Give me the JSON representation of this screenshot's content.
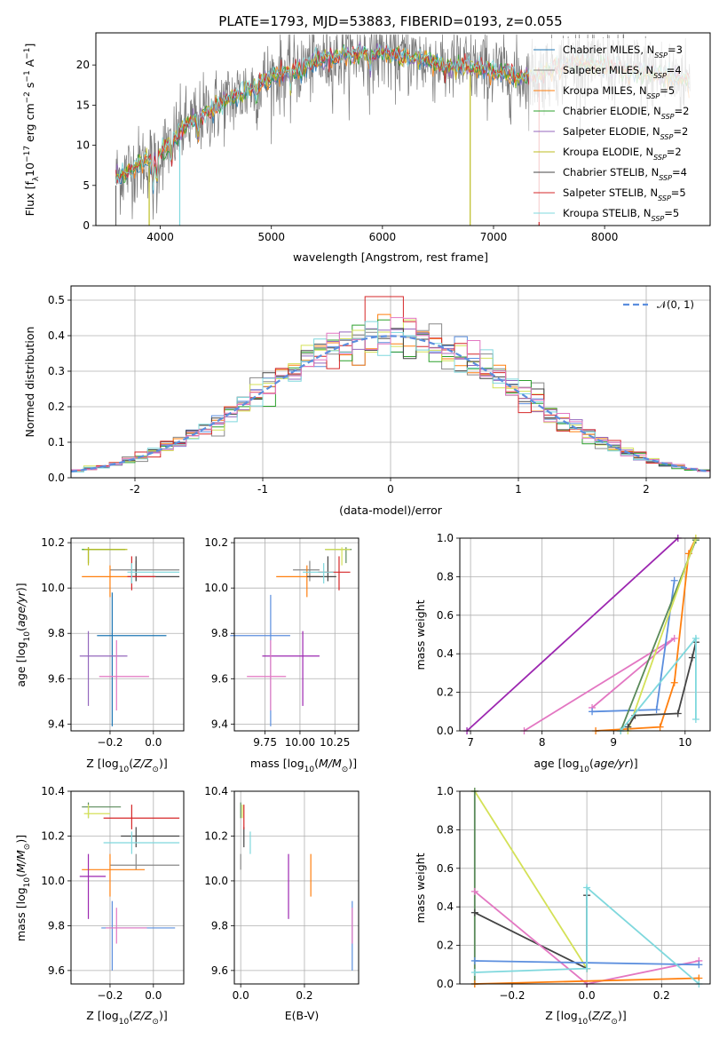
{
  "title": "PLATE=1793, MJD=53883, FIBERID=0193, z=0.055",
  "colors": {
    "Chabrier MILES": "#1f77b4",
    "Salpeter MILES": "#888888",
    "Kroupa MILES": "#ff7f0e",
    "Chabrier ELODIE": "#2ca02c",
    "Salpeter ELODIE": "#9467bd",
    "Kroupa ELODIE": "#bcbd22",
    "Chabrier STELIB": "#444444",
    "Salpeter STELIB": "#d62728",
    "Kroupa STELIB": "#7fd8dd",
    "Normal": "#5b8ede"
  },
  "legend_main": [
    {
      "pre": "Chabrier MILES, N",
      "sub": "SSP",
      "post": "=3",
      "series": "Chabrier MILES"
    },
    {
      "pre": "Salpeter MILES, N",
      "sub": "SSP",
      "post": "=4",
      "series": "Salpeter MILES"
    },
    {
      "pre": "Kroupa MILES, N",
      "sub": "SSP",
      "post": "=5",
      "series": "Kroupa MILES"
    },
    {
      "pre": "Chabrier ELODIE, N",
      "sub": "SSP",
      "post": "=2",
      "series": "Chabrier ELODIE"
    },
    {
      "pre": "Salpeter ELODIE, N",
      "sub": "SSP",
      "post": "=2",
      "series": "Salpeter ELODIE"
    },
    {
      "pre": "Kroupa ELODIE, N",
      "sub": "SSP",
      "post": "=2",
      "series": "Kroupa ELODIE"
    },
    {
      "pre": "Chabrier STELIB, N",
      "sub": "SSP",
      "post": "=4",
      "series": "Chabrier STELIB"
    },
    {
      "pre": "Salpeter STELIB, N",
      "sub": "SSP",
      "post": "=5",
      "series": "Salpeter STELIB"
    },
    {
      "pre": "Kroupa STELIB, N",
      "sub": "SSP",
      "post": "=5",
      "series": "Kroupa STELIB"
    }
  ],
  "legend_hist": "𝒩(0, 1)",
  "chart_data": [
    {
      "id": "spectrum",
      "type": "line",
      "xlabel": "wavelength [Angstrom, rest frame]",
      "ylabel_pre": "Flux [f",
      "ylabel_sub": "λ",
      "ylabel_mid": "10",
      "ylabel_sup1": "−17",
      "ylabel_post1": " erg cm",
      "ylabel_sup2": "−2",
      "ylabel_post2": " s",
      "ylabel_sup3": "−1",
      "ylabel_post3": " A",
      "ylabel_sup4": "−1",
      "ylabel_end": "]",
      "xlim": [
        3420,
        8950
      ],
      "ylim": [
        0,
        24
      ],
      "xticks": [
        4000,
        5000,
        6000,
        7000,
        8000
      ],
      "yticks": [
        0,
        5,
        10,
        15,
        20
      ],
      "continuum": [
        [
          3600,
          6
        ],
        [
          3800,
          7.5
        ],
        [
          4000,
          9
        ],
        [
          4200,
          12
        ],
        [
          4400,
          14
        ],
        [
          4600,
          15.5
        ],
        [
          4800,
          17
        ],
        [
          5000,
          18.5
        ],
        [
          5200,
          19.5
        ],
        [
          5400,
          20.5
        ],
        [
          5600,
          21
        ],
        [
          5800,
          21.5
        ],
        [
          6000,
          21.5
        ],
        [
          6200,
          21
        ],
        [
          6400,
          20.5
        ],
        [
          6600,
          20
        ],
        [
          6800,
          19.7
        ],
        [
          7000,
          19.3
        ],
        [
          7200,
          18.5
        ],
        [
          7400,
          18.7
        ],
        [
          7600,
          20
        ],
        [
          7800,
          20.3
        ],
        [
          8000,
          19.8
        ],
        [
          8200,
          19.3
        ],
        [
          8400,
          19
        ],
        [
          8600,
          18.5
        ],
        [
          8770,
          18.1
        ]
      ]
    },
    {
      "id": "residuals",
      "type": "histogram",
      "xlabel": "(data-model)/error",
      "ylabel": "Normed distribution",
      "xlim": [
        -2.5,
        2.5
      ],
      "ylim": [
        0,
        0.54
      ],
      "xticks": [
        -2,
        -1,
        0,
        1,
        2
      ],
      "yticks": [
        0.0,
        0.1,
        0.2,
        0.3,
        0.4,
        0.5
      ],
      "bin_width": 0.1,
      "reference": "normal(0,1)"
    },
    {
      "id": "age_vs_Z",
      "type": "scatter",
      "xlabel_pre": "Z [log",
      "xlabel_sub": "10",
      "xlabel_post": "(Z/Z",
      "xlabel_sub2": "⊙",
      "xlabel_end": ")]",
      "ylabel_pre": "age  [log",
      "ylabel_sub": "10",
      "ylabel_post": "(age/yr)]",
      "xlim": [
        -0.38,
        0.14
      ],
      "ylim": [
        9.37,
        10.22
      ],
      "xticks": [
        -0.2,
        0.0
      ],
      "xticklabels": [
        "−0.2",
        "0.0"
      ],
      "yticks": [
        9.4,
        9.6,
        9.8,
        10.0,
        10.2
      ],
      "points": [
        {
          "s": "Chabrier MILES",
          "x": -0.19,
          "y": 9.79,
          "xl": -0.26,
          "xh": 0.06,
          "yl": 9.39,
          "yh": 9.98
        },
        {
          "s": "Salpeter MILES",
          "x": -0.08,
          "y": 10.08,
          "xl": -0.2,
          "xh": 0.12,
          "yl": 10.03,
          "yh": 10.12
        },
        {
          "s": "Kroupa MILES",
          "x": -0.2,
          "y": 10.05,
          "xl": -0.33,
          "xh": -0.09,
          "yl": 9.96,
          "yh": 10.1
        },
        {
          "s": "Chabrier ELODIE",
          "x": -0.3,
          "y": 10.17,
          "xl": -0.33,
          "xh": -0.13,
          "yl": 10.11,
          "yh": 10.18
        },
        {
          "s": "Salpeter ELODIE",
          "x": -0.3,
          "y": 9.7,
          "xl": -0.34,
          "xh": -0.12,
          "yl": 9.48,
          "yh": 9.81
        },
        {
          "s": "Kroupa ELODIE",
          "x": -0.3,
          "y": 10.17,
          "xl": -0.32,
          "xh": -0.12,
          "yl": 10.1,
          "yh": 10.18
        },
        {
          "s": "Chabrier STELIB",
          "x": -0.08,
          "y": 10.05,
          "xl": -0.1,
          "xh": 0.12,
          "yl": 10.03,
          "yh": 10.14
        },
        {
          "s": "Salpeter STELIB",
          "x": -0.1,
          "y": 10.05,
          "xl": -0.12,
          "xh": 0.01,
          "yl": 9.99,
          "yh": 10.14
        },
        {
          "s": "Kroupa STELIB",
          "x": -0.1,
          "y": 10.07,
          "xl": -0.12,
          "xh": 0.12,
          "yl": 10.02,
          "yh": 10.11
        },
        {
          "s": "Salpeter MILES pink",
          "x": -0.17,
          "y": 9.61,
          "xl": -0.25,
          "xh": -0.02,
          "yl": 9.46,
          "yh": 9.77,
          "c": "#e377c2"
        }
      ]
    },
    {
      "id": "age_vs_mass",
      "type": "scatter",
      "xlabel_pre": "mass [log",
      "xlabel_sub": "10",
      "xlabel_post": "(M/M",
      "xlabel_sub2": "⊙",
      "xlabel_end": ")]",
      "xlim": [
        9.53,
        10.42
      ],
      "ylim": [
        9.37,
        10.22
      ],
      "xticks": [
        9.75,
        10.0,
        10.25
      ],
      "xticklabels": [
        "9.75",
        "10.00",
        "10.25"
      ],
      "yticks": [
        9.4,
        9.6,
        9.8,
        10.0,
        10.2
      ]
    },
    {
      "id": "mass_weight_vs_age",
      "type": "line",
      "xlabel_pre": "age  [log",
      "xlabel_sub": "10",
      "xlabel_post": "(age/yr)]",
      "ylabel": "mass weight",
      "xlim": [
        6.85,
        10.35
      ],
      "ylim": [
        0,
        1
      ],
      "xticks": [
        7,
        8,
        9,
        10
      ],
      "yticks": [
        0.0,
        0.2,
        0.4,
        0.6,
        0.8,
        1.0
      ],
      "series": [
        {
          "s": "Salpeter ELODIE",
          "c": "#9c27b0",
          "pts": [
            [
              6.95,
              0.0
            ],
            [
              9.9,
              1.0
            ]
          ]
        },
        {
          "s": "pink",
          "c": "#e377c2",
          "pts": [
            [
              8.7,
              0.12
            ],
            [
              9.85,
              0.48
            ],
            [
              7.75,
              0.0
            ]
          ]
        },
        {
          "s": "Chabrier MILES",
          "c": "#5b8ede",
          "pts": [
            [
              8.7,
              0.1
            ],
            [
              9.6,
              0.11
            ],
            [
              9.85,
              0.78
            ]
          ]
        },
        {
          "s": "Kroupa MILES",
          "c": "#ff7f0e",
          "pts": [
            [
              8.75,
              0.0
            ],
            [
              9.65,
              0.02
            ],
            [
              9.85,
              0.25
            ],
            [
              10.05,
              0.92
            ],
            [
              10.15,
              1.0
            ]
          ]
        },
        {
          "s": "Chabrier ELODIE",
          "c": "#5a8a5a",
          "pts": [
            [
              9.1,
              0.0
            ],
            [
              10.15,
              0.99
            ]
          ]
        },
        {
          "s": "Kroupa ELODIE",
          "c": "#d4e157",
          "pts": [
            [
              9.2,
              0.0
            ],
            [
              10.15,
              1.0
            ]
          ]
        },
        {
          "s": "Chabrier STELIB",
          "c": "#444444",
          "pts": [
            [
              9.2,
              0.02
            ],
            [
              9.3,
              0.08
            ],
            [
              9.9,
              0.09
            ],
            [
              10.1,
              0.38
            ],
            [
              10.15,
              0.46
            ]
          ]
        },
        {
          "s": "Kroupa STELIB",
          "c": "#7fd8dd",
          "pts": [
            [
              9.1,
              0.0
            ],
            [
              10.15,
              0.48
            ],
            [
              10.15,
              0.06
            ]
          ]
        }
      ]
    },
    {
      "id": "mass_vs_Z",
      "type": "scatter",
      "xlabel_pre": "Z [log",
      "xlabel_sub": "10",
      "xlabel_post": "(Z/Z",
      "xlabel_sub2": "⊙",
      "xlabel_end": ")]",
      "ylabel_pre": "mass [log",
      "ylabel_sub": "10",
      "ylabel_post": "(M/M",
      "ylabel_sub2": "⊙",
      "ylabel_end": ")]",
      "xlim": [
        -0.38,
        0.14
      ],
      "ylim": [
        9.54,
        10.4
      ],
      "xticks": [
        -0.2,
        0.0
      ],
      "xticklabels": [
        "−0.2",
        "0.0"
      ],
      "yticks": [
        9.6,
        9.8,
        10.0,
        10.2,
        10.4
      ]
    },
    {
      "id": "mass_vs_EBV",
      "type": "scatter",
      "xlabel": "E(B-V)",
      "xlim": [
        -0.02,
        0.37
      ],
      "ylim": [
        9.54,
        10.4
      ],
      "xticks": [
        0.0,
        0.2
      ],
      "xticklabels": [
        "0.0",
        "0.2"
      ],
      "yticks": [
        9.6,
        9.8,
        10.0,
        10.2,
        10.4
      ]
    },
    {
      "id": "mass_weight_vs_Z",
      "type": "line",
      "xlabel_pre": "Z [log",
      "xlabel_sub": "10",
      "xlabel_post": "(Z/Z",
      "xlabel_sub2": "⊙",
      "xlabel_end": ")]",
      "ylabel": "mass weight",
      "xlim": [
        -0.34,
        0.33
      ],
      "ylim": [
        0,
        1
      ],
      "xticks": [
        -0.2,
        0.0,
        0.2
      ],
      "xticklabels": [
        "−0.2",
        "0.0",
        "0.2"
      ],
      "yticks": [
        0.0,
        0.2,
        0.4,
        0.6,
        0.8,
        1.0
      ]
    }
  ]
}
